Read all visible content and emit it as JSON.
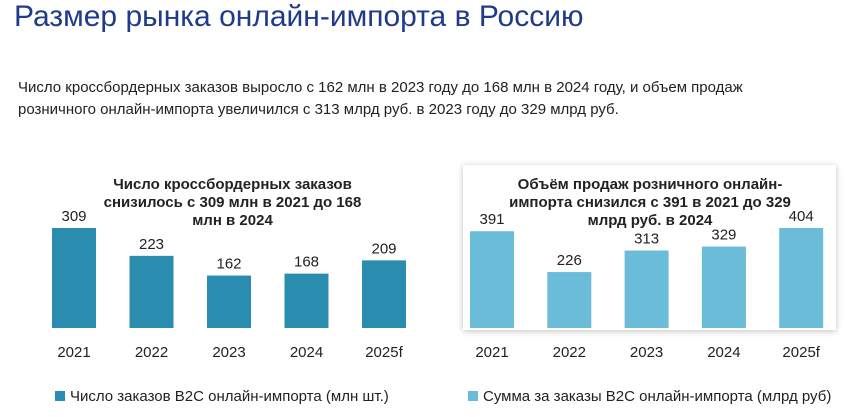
{
  "title": "Размер рынка онлайн-импорта в Россию",
  "text": "Число кроссбордерных заказов выросло с 162 млн в 2023 году до 168 млн в 2024 году, и объем продаж розничного онлайн-импорта увеличился с 313 млрд руб. в 2023 году до 329 млрд руб.",
  "chart_data": [
    {
      "type": "bar",
      "title": "Число кроссбордерных заказов снизилось с 309 млн в 2021 до 168 млн в 2024",
      "categories": [
        "2021",
        "2022",
        "2023",
        "2024",
        "2025f"
      ],
      "series": [
        {
          "name": "Число заказов B2C онлайн-импорта (млн шт.)",
          "color": "#2a8cae",
          "values": [
            309,
            223,
            162,
            168,
            209
          ]
        }
      ]
    },
    {
      "type": "bar",
      "title": "Объём продаж розничного онлайн-импорта снизился с 391 в 2021 до 329 млрд руб. в 2024",
      "categories": [
        "2021",
        "2022",
        "2023",
        "2024",
        "2025f"
      ],
      "series": [
        {
          "name": "Сумма за заказы B2C онлайн-импорта (млрд руб)",
          "color": "#6bbcd9",
          "values": [
            391,
            226,
            313,
            329,
            404
          ]
        }
      ]
    }
  ]
}
